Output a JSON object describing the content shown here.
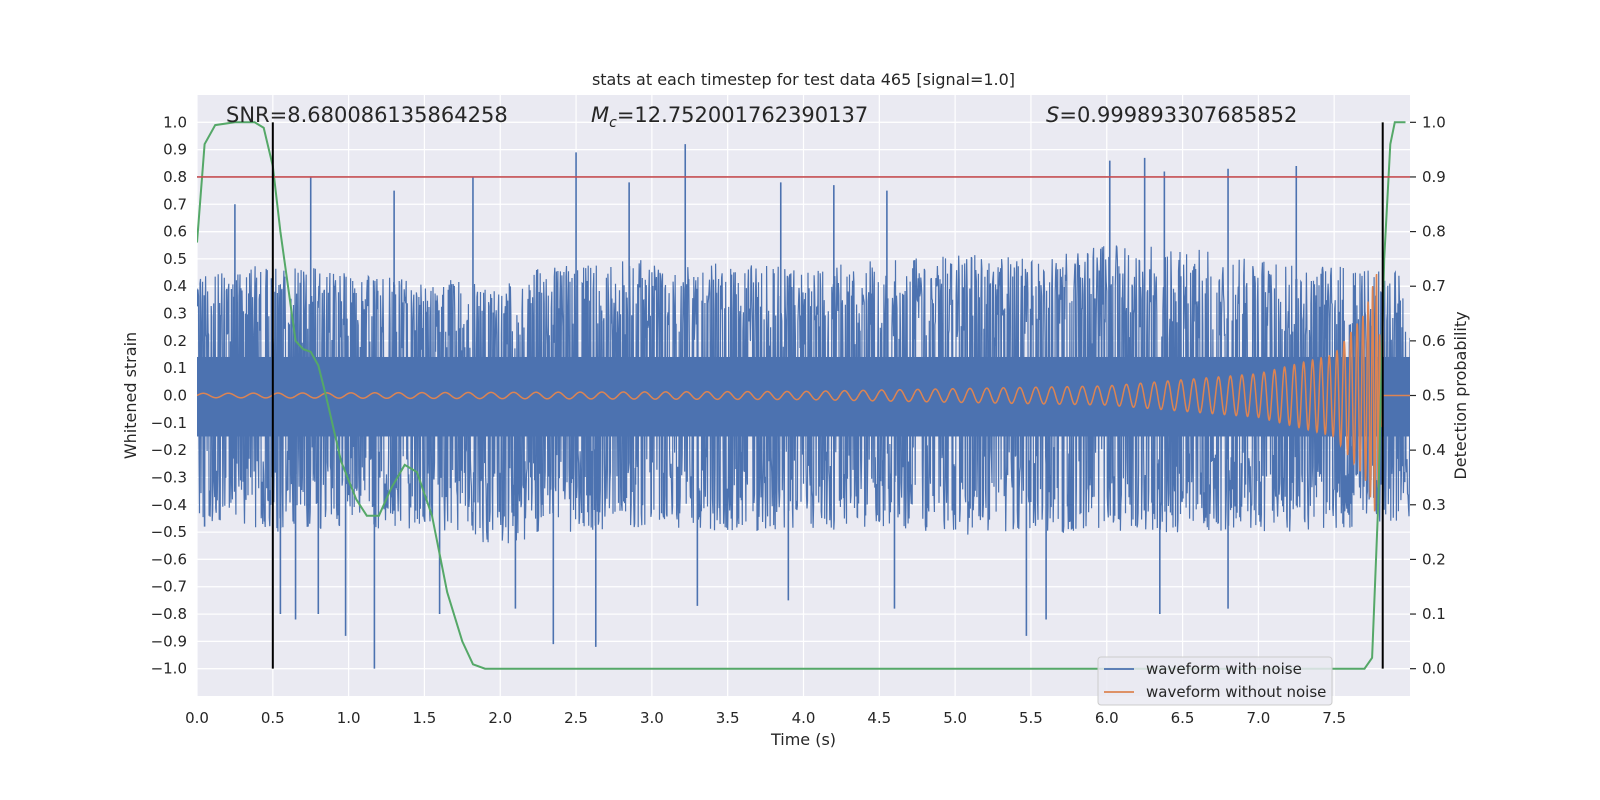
{
  "chart_data": {
    "type": "line",
    "title": "stats at each timestep for test data 465 [signal=1.0]",
    "xlabel": "Time (s)",
    "ylabel": "Whitened strain",
    "y2label": "Detection probability",
    "xlim": [
      0.0,
      8.0
    ],
    "ylim": [
      -1.1,
      1.1
    ],
    "y2lim": [
      -0.05,
      1.05
    ],
    "xticks": [
      "0.0",
      "0.5",
      "1.0",
      "1.5",
      "2.0",
      "2.5",
      "3.0",
      "3.5",
      "4.0",
      "4.5",
      "5.0",
      "5.5",
      "6.0",
      "6.5",
      "7.0",
      "7.5"
    ],
    "yticks": [
      "1.0",
      "0.9",
      "0.8",
      "0.7",
      "0.6",
      "0.5",
      "0.4",
      "0.3",
      "0.2",
      "0.1",
      "0.0",
      "−0.1",
      "−0.2",
      "−0.3",
      "−0.4",
      "−0.5",
      "−0.6",
      "−0.7",
      "−0.8",
      "−0.9",
      "−1.0"
    ],
    "y2ticks": [
      "1.0",
      "0.9",
      "0.8",
      "0.7",
      "0.6",
      "0.5",
      "0.4",
      "0.3",
      "0.2",
      "0.1",
      "0.0"
    ],
    "annotations": {
      "snr": "SNR=8.680086135864258",
      "mc_symbol": "M",
      "mc_sub": "c",
      "mc_value": "=12.752001762390137",
      "s_symbol": "S",
      "s_value": "=0.999893307685852"
    },
    "series": [
      {
        "name": "waveform with noise",
        "color": "#4c72b0",
        "description": "dense noisy strain, envelope approx",
        "envelope_upper": [
          [
            0.0,
            0.45
          ],
          [
            0.5,
            0.5
          ],
          [
            1.0,
            0.45
          ],
          [
            1.5,
            0.42
          ],
          [
            2.0,
            0.45
          ],
          [
            2.5,
            0.48
          ],
          [
            3.0,
            0.5
          ],
          [
            3.5,
            0.48
          ],
          [
            4.0,
            0.47
          ],
          [
            4.5,
            0.5
          ],
          [
            5.0,
            0.52
          ],
          [
            5.5,
            0.5
          ],
          [
            6.0,
            0.55
          ],
          [
            6.5,
            0.55
          ],
          [
            7.0,
            0.5
          ],
          [
            7.5,
            0.48
          ],
          [
            8.0,
            0.45
          ]
        ],
        "envelope_lower": [
          [
            0.0,
            -0.45
          ],
          [
            0.5,
            -0.5
          ],
          [
            1.0,
            -0.48
          ],
          [
            1.5,
            -0.5
          ],
          [
            2.0,
            -0.55
          ],
          [
            2.5,
            -0.5
          ],
          [
            3.0,
            -0.48
          ],
          [
            3.5,
            -0.5
          ],
          [
            4.0,
            -0.5
          ],
          [
            4.5,
            -0.48
          ],
          [
            5.0,
            -0.52
          ],
          [
            5.5,
            -0.5
          ],
          [
            6.0,
            -0.52
          ],
          [
            6.5,
            -0.5
          ],
          [
            7.0,
            -0.5
          ],
          [
            7.5,
            -0.5
          ],
          [
            8.0,
            -0.45
          ]
        ],
        "spikes": [
          [
            0.05,
            -0.48
          ],
          [
            0.55,
            -0.8
          ],
          [
            0.65,
            -0.82
          ],
          [
            0.8,
            -0.8
          ],
          [
            0.98,
            -0.88
          ],
          [
            1.17,
            -1.0
          ],
          [
            1.6,
            -0.8
          ],
          [
            2.1,
            -0.78
          ],
          [
            2.35,
            -0.91
          ],
          [
            2.63,
            -0.92
          ],
          [
            3.3,
            -0.77
          ],
          [
            3.9,
            -0.75
          ],
          [
            4.6,
            -0.78
          ],
          [
            5.47,
            -0.88
          ],
          [
            5.6,
            -0.82
          ],
          [
            6.35,
            -0.8
          ],
          [
            6.8,
            -0.78
          ],
          [
            0.25,
            0.7
          ],
          [
            0.75,
            0.8
          ],
          [
            1.3,
            0.75
          ],
          [
            1.82,
            0.8
          ],
          [
            2.5,
            0.89
          ],
          [
            2.85,
            0.78
          ],
          [
            3.22,
            0.92
          ],
          [
            3.85,
            0.78
          ],
          [
            4.2,
            0.77
          ],
          [
            4.55,
            0.75
          ],
          [
            6.02,
            0.86
          ],
          [
            6.25,
            0.87
          ],
          [
            6.38,
            0.82
          ],
          [
            6.8,
            0.83
          ],
          [
            7.25,
            0.84
          ]
        ]
      },
      {
        "name": "waveform without noise",
        "color": "#dd8452",
        "description": "chirp, amplitude grows toward merger",
        "chirp_amplitude": [
          [
            0.0,
            0.008
          ],
          [
            4.0,
            0.015
          ],
          [
            6.0,
            0.035
          ],
          [
            7.0,
            0.08
          ],
          [
            7.5,
            0.15
          ],
          [
            7.7,
            0.3
          ],
          [
            7.78,
            0.45
          ],
          [
            7.82,
            0.0
          ]
        ],
        "chirp_end": 7.82,
        "freq_start": 6.0,
        "freq_end": 50.0
      },
      {
        "name": "detection probability",
        "color": "#55a868",
        "axis": "right",
        "points": [
          [
            0.0,
            0.78
          ],
          [
            0.05,
            0.96
          ],
          [
            0.12,
            0.995
          ],
          [
            0.25,
            1.0
          ],
          [
            0.38,
            1.0
          ],
          [
            0.44,
            0.99
          ],
          [
            0.5,
            0.92
          ],
          [
            0.55,
            0.8
          ],
          [
            0.6,
            0.7
          ],
          [
            0.65,
            0.6
          ],
          [
            0.7,
            0.585
          ],
          [
            0.75,
            0.58
          ],
          [
            0.8,
            0.555
          ],
          [
            0.85,
            0.5
          ],
          [
            0.95,
            0.38
          ],
          [
            1.05,
            0.31
          ],
          [
            1.12,
            0.28
          ],
          [
            1.2,
            0.28
          ],
          [
            1.28,
            0.33
          ],
          [
            1.37,
            0.373
          ],
          [
            1.45,
            0.36
          ],
          [
            1.55,
            0.28
          ],
          [
            1.65,
            0.14
          ],
          [
            1.75,
            0.05
          ],
          [
            1.82,
            0.008
          ],
          [
            1.9,
            0.0
          ],
          [
            7.7,
            0.0
          ],
          [
            7.75,
            0.02
          ],
          [
            7.79,
            0.3
          ],
          [
            7.83,
            0.75
          ],
          [
            7.87,
            0.96
          ],
          [
            7.9,
            1.0
          ],
          [
            7.97,
            1.0
          ]
        ]
      }
    ],
    "threshold": {
      "value": 0.9,
      "axis": "right",
      "color": "#c44e52"
    },
    "vlines": [
      {
        "x": 0.5,
        "y2_range": [
          0.0,
          1.0
        ]
      },
      {
        "x": 7.82,
        "y2_range": [
          0.0,
          1.0
        ]
      }
    ],
    "legend": {
      "position": "lower-right"
    },
    "grid": true,
    "colors": {
      "background": "#eaeaf2",
      "grid": "#ffffff",
      "vline": "#000000"
    }
  }
}
